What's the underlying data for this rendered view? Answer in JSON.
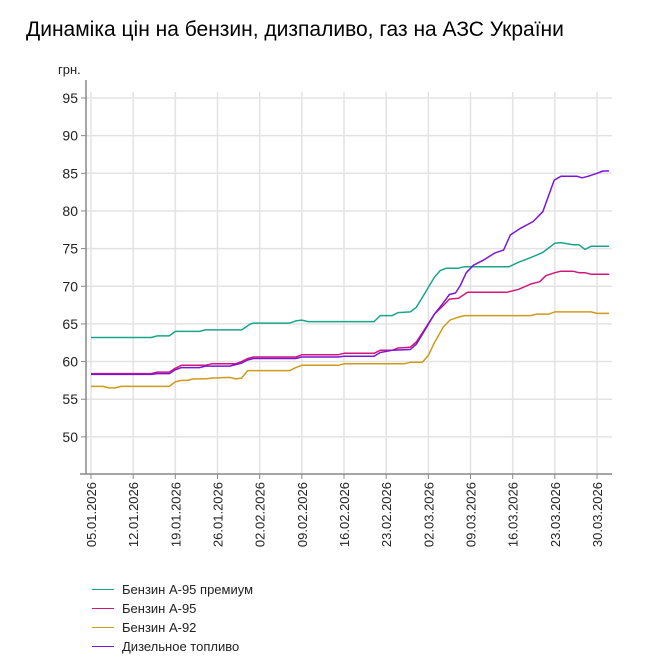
{
  "chart_data": {
    "type": "line",
    "title": "Динаміка цін на бензин, дизпаливо, газ на АЗС України",
    "ylabel": "грн.",
    "xlabel": "",
    "ylim": [
      45,
      97
    ],
    "yticks": [
      50,
      55,
      60,
      65,
      70,
      75,
      80,
      85,
      90,
      95
    ],
    "x_unit": "days since 05.01.2026",
    "xticks": [
      {
        "day": 0,
        "label": "05.01.2026"
      },
      {
        "day": 7,
        "label": "12.01.2026"
      },
      {
        "day": 14,
        "label": "19.01.2026"
      },
      {
        "day": 21,
        "label": "26.01.2026"
      },
      {
        "day": 28,
        "label": "02.02.2026"
      },
      {
        "day": 35,
        "label": "09.02.2026"
      },
      {
        "day": 42,
        "label": "16.02.2026"
      },
      {
        "day": 49,
        "label": "23.02.2026"
      },
      {
        "day": 56,
        "label": "02.03.2026"
      },
      {
        "day": 63,
        "label": "09.03.2026"
      },
      {
        "day": 70,
        "label": "16.03.2026"
      },
      {
        "day": 77,
        "label": "23.03.2026"
      },
      {
        "day": 84,
        "label": "30.03.2026"
      }
    ],
    "grid": true,
    "legend_position": "bottom-left",
    "series": [
      {
        "name": "Бензин А-95 премиум",
        "color": "#1aa58a",
        "points": [
          [
            0,
            63.2
          ],
          [
            10,
            63.2
          ],
          [
            11,
            63.4
          ],
          [
            13,
            63.4
          ],
          [
            14,
            64.0
          ],
          [
            18,
            64.0
          ],
          [
            19,
            64.2
          ],
          [
            25,
            64.2
          ],
          [
            26.5,
            65.0
          ],
          [
            27,
            65.1
          ],
          [
            33,
            65.1
          ],
          [
            34,
            65.4
          ],
          [
            35,
            65.5
          ],
          [
            36,
            65.3
          ],
          [
            47,
            65.3
          ],
          [
            48,
            66.1
          ],
          [
            50,
            66.1
          ],
          [
            51,
            66.5
          ],
          [
            53,
            66.6
          ],
          [
            54,
            67.2
          ],
          [
            55,
            68.5
          ],
          [
            57,
            71.2
          ],
          [
            58,
            72.1
          ],
          [
            59,
            72.4
          ],
          [
            61,
            72.4
          ],
          [
            62,
            72.6
          ],
          [
            69.4,
            72.6
          ],
          [
            71,
            73.2
          ],
          [
            73,
            73.8
          ],
          [
            75,
            74.5
          ],
          [
            77,
            75.7
          ],
          [
            78,
            75.8
          ],
          [
            80,
            75.5
          ],
          [
            81,
            75.5
          ],
          [
            82,
            74.9
          ],
          [
            83,
            75.3
          ],
          [
            86,
            75.3
          ]
        ]
      },
      {
        "name": "Бензин А-95",
        "color": "#d0187a",
        "points": [
          [
            0,
            58.4
          ],
          [
            10,
            58.4
          ],
          [
            11,
            58.6
          ],
          [
            13,
            58.6
          ],
          [
            14,
            59.1
          ],
          [
            15,
            59.5
          ],
          [
            19,
            59.5
          ],
          [
            20,
            59.7
          ],
          [
            24,
            59.7
          ],
          [
            25,
            60.0
          ],
          [
            26,
            60.4
          ],
          [
            27,
            60.6
          ],
          [
            34,
            60.6
          ],
          [
            35,
            60.9
          ],
          [
            41,
            60.9
          ],
          [
            42,
            61.1
          ],
          [
            47,
            61.1
          ],
          [
            48,
            61.5
          ],
          [
            50,
            61.5
          ],
          [
            51,
            61.8
          ],
          [
            53,
            61.9
          ],
          [
            54,
            62.6
          ],
          [
            55,
            63.8
          ],
          [
            57,
            66.3
          ],
          [
            58.3,
            67.3
          ],
          [
            59.5,
            68.3
          ],
          [
            61,
            68.4
          ],
          [
            62.5,
            69.2
          ],
          [
            69,
            69.2
          ],
          [
            71,
            69.6
          ],
          [
            73,
            70.3
          ],
          [
            74.5,
            70.6
          ],
          [
            75.5,
            71.4
          ],
          [
            77,
            71.8
          ],
          [
            78,
            72.0
          ],
          [
            80,
            72.0
          ],
          [
            81,
            71.8
          ],
          [
            82,
            71.8
          ],
          [
            83,
            71.6
          ],
          [
            86,
            71.6
          ]
        ]
      },
      {
        "name": "Бензин А-92",
        "color": "#d09a1a",
        "points": [
          [
            0,
            56.7
          ],
          [
            2,
            56.7
          ],
          [
            3,
            56.5
          ],
          [
            4,
            56.5
          ],
          [
            5,
            56.7
          ],
          [
            13,
            56.7
          ],
          [
            14,
            57.3
          ],
          [
            15,
            57.5
          ],
          [
            16,
            57.5
          ],
          [
            17,
            57.7
          ],
          [
            19,
            57.7
          ],
          [
            20,
            57.8
          ],
          [
            23,
            57.9
          ],
          [
            24,
            57.7
          ],
          [
            25,
            57.8
          ],
          [
            26,
            58.8
          ],
          [
            33,
            58.8
          ],
          [
            34,
            59.2
          ],
          [
            35,
            59.5
          ],
          [
            41,
            59.5
          ],
          [
            42,
            59.7
          ],
          [
            52,
            59.7
          ],
          [
            53,
            59.9
          ],
          [
            55,
            59.9
          ],
          [
            56,
            60.8
          ],
          [
            57,
            62.5
          ],
          [
            58.5,
            64.6
          ],
          [
            59.6,
            65.5
          ],
          [
            61,
            65.9
          ],
          [
            62,
            66.1
          ],
          [
            73,
            66.1
          ],
          [
            74,
            66.3
          ],
          [
            76,
            66.3
          ],
          [
            77,
            66.6
          ],
          [
            83,
            66.6
          ],
          [
            84,
            66.4
          ],
          [
            86,
            66.4
          ]
        ]
      },
      {
        "name": "Дизельное топливо",
        "color": "#7a16d8",
        "points": [
          [
            0,
            58.3
          ],
          [
            10,
            58.3
          ],
          [
            11,
            58.4
          ],
          [
            13,
            58.4
          ],
          [
            14,
            58.9
          ],
          [
            15,
            59.2
          ],
          [
            18,
            59.2
          ],
          [
            19,
            59.4
          ],
          [
            23,
            59.4
          ],
          [
            24,
            59.6
          ],
          [
            25,
            59.8
          ],
          [
            26,
            60.2
          ],
          [
            27,
            60.4
          ],
          [
            34,
            60.4
          ],
          [
            35,
            60.6
          ],
          [
            41,
            60.6
          ],
          [
            42,
            60.7
          ],
          [
            47,
            60.7
          ],
          [
            48,
            61.2
          ],
          [
            50,
            61.5
          ],
          [
            53,
            61.6
          ],
          [
            54,
            62.3
          ],
          [
            55,
            63.6
          ],
          [
            57,
            66.3
          ],
          [
            58.3,
            67.6
          ],
          [
            59.5,
            68.9
          ],
          [
            60.5,
            69.1
          ],
          [
            61.3,
            70.1
          ],
          [
            62.3,
            71.8
          ],
          [
            63.5,
            72.8
          ],
          [
            65,
            73.4
          ],
          [
            67,
            74.4
          ],
          [
            68.5,
            74.8
          ],
          [
            69.6,
            76.8
          ],
          [
            71.3,
            77.7
          ],
          [
            73.4,
            78.6
          ],
          [
            75,
            79.9
          ],
          [
            76.9,
            84.1
          ],
          [
            78,
            84.6
          ],
          [
            80.7,
            84.6
          ],
          [
            81.5,
            84.4
          ],
          [
            82.5,
            84.6
          ],
          [
            84,
            85.0
          ],
          [
            85,
            85.3
          ],
          [
            86,
            85.3
          ]
        ]
      }
    ]
  }
}
